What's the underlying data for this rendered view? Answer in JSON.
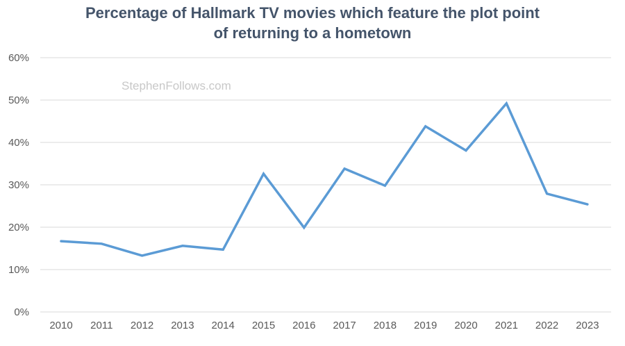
{
  "chart_data": {
    "type": "line",
    "title_line1": "Percentage of Hallmark TV movies which feature the plot point",
    "title_line2": "of returning to a hometown",
    "watermark": "StephenFollows.com",
    "x": [
      "2010",
      "2011",
      "2012",
      "2013",
      "2014",
      "2015",
      "2016",
      "2017",
      "2018",
      "2019",
      "2020",
      "2021",
      "2022",
      "2023"
    ],
    "series": [
      {
        "values": [
          16.7,
          16.1,
          13.3,
          15.6,
          14.7,
          32.6,
          19.9,
          33.8,
          29.8,
          43.8,
          38.1,
          49.2,
          27.9,
          25.4
        ]
      }
    ],
    "y_ticks": [
      "0%",
      "10%",
      "20%",
      "30%",
      "40%",
      "50%",
      "60%"
    ],
    "ylim": [
      0,
      60
    ],
    "grid": true,
    "line_color": "#5b9bd5"
  }
}
